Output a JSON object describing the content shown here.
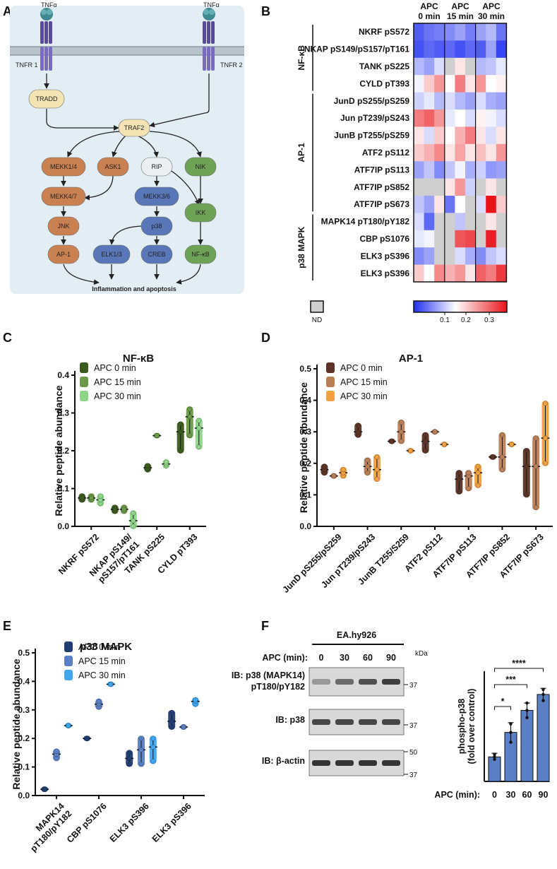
{
  "panels": {
    "A": {
      "letter": "A",
      "ligand_left": "TNFα",
      "ligand_right": "TNFα",
      "receptor_left": "TNFR 1",
      "receptor_right": "TNFR 2",
      "nodes": {
        "tradd": "TRADD",
        "traf2": "TRAF2",
        "mekk14": "MEKK1/4",
        "ask1": "ASK1",
        "rip": "RIP",
        "nik": "NIK",
        "mekk47": "MEKK4/7",
        "mekk36": "MEKK3/6",
        "ikk": "IKK",
        "jnk": "JNK",
        "p38": "p38",
        "ap1": "AP-1",
        "elk13": "ELK1/3",
        "creb": "CREB",
        "nfkb": "NF-κB"
      },
      "outcome": "Inflammation and apoptosis",
      "colors": {
        "mapk": "#c98152",
        "rip": "#eceff2",
        "nfkb": "#6ea357",
        "p38": "#5977b8",
        "adaptor": "#f4e3b3",
        "bg": "#e3eef4"
      }
    },
    "B": {
      "letter": "B",
      "col_headers": [
        [
          "APC",
          "0 min"
        ],
        [
          "APC",
          "15 min"
        ],
        [
          "APC",
          "30 min"
        ]
      ],
      "groups": [
        {
          "name": "NF-κB",
          "color": "#6ea357"
        },
        {
          "name": "AP-1",
          "color": "#c98152"
        },
        {
          "name": "p38 MAPK",
          "color": "#5977b8"
        }
      ],
      "rows": [
        {
          "label": "NKRF pS572",
          "values": [
            0.04,
            0.06,
            0.07,
            0.08,
            0.1,
            0.07,
            0.1,
            0.12,
            0.06
          ]
        },
        {
          "label": "NKAP pS149/pS157/pT161",
          "values": [
            0.03,
            0.05,
            0.04,
            0.05,
            0.03,
            0.05,
            0.04,
            0.1,
            0.02
          ]
        },
        {
          "label": "TANK pS225",
          "values": [
            0.12,
            0.1,
            0.15,
            null,
            0.2,
            null,
            0.12,
            0.13,
            0.16
          ]
        },
        {
          "label": "CYLD pT393",
          "values": [
            0.17,
            0.22,
            0.26,
            0.18,
            0.28,
            0.2,
            0.26,
            0.18,
            0.19
          ]
        },
        {
          "label": "JunD pS255/pS259",
          "values": [
            0.14,
            0.16,
            0.12,
            0.15,
            0.12,
            0.1,
            0.15,
            0.11,
            0.1
          ]
        },
        {
          "label": "Jun pT239/pS243",
          "values": [
            0.28,
            0.3,
            0.26,
            0.16,
            0.18,
            0.15,
            0.19,
            0.17,
            0.15
          ]
        },
        {
          "label": "JunB pT255/pS259",
          "values": [
            0.2,
            0.15,
            0.22,
            0.18,
            0.24,
            0.28,
            0.2,
            0.15,
            0.2
          ]
        },
        {
          "label": "ATF2 pS112",
          "values": [
            0.22,
            0.24,
            0.27,
            0.2,
            0.25,
            0.2,
            0.23,
            0.2,
            0.26
          ]
        },
        {
          "label": "ATF7IP pS113",
          "values": [
            0.1,
            0.13,
            0.08,
            0.13,
            0.17,
            0.11,
            0.14,
            0.09,
            0.1
          ]
        },
        {
          "label": "ATF7IP pS852",
          "values": [
            null,
            null,
            null,
            0.2,
            0.26,
            0.14,
            null,
            0.2,
            null
          ]
        },
        {
          "label": "ATF7IP pS673",
          "values": [
            0.13,
            0.1,
            0.2,
            0.06,
            0.18,
            null,
            0.15,
            0.36,
            0.22
          ]
        },
        {
          "label": "MAPK14 pT180/pY182",
          "values": [
            0.15,
            0.05,
            null,
            null,
            0.13,
            null,
            null,
            0.2,
            null
          ]
        },
        {
          "label": "CBP pS1076",
          "values": [
            0.16,
            0.17,
            null,
            null,
            0.31,
            0.32,
            null,
            0.35,
            null
          ]
        },
        {
          "label": "ELK3 pS396",
          "values": [
            0.08,
            0.1,
            null,
            null,
            0.15,
            0.11,
            0.08,
            0.13,
            0.15
          ]
        },
        {
          "label": "ELK3 pS396",
          "values": [
            0.22,
            0.18,
            0.27,
            0.24,
            0.26,
            0.2,
            0.3,
            0.28,
            0.33
          ]
        }
      ],
      "legend": {
        "nd": "ND",
        "ticks": [
          "0.1",
          "0.2",
          "0.3"
        ],
        "low": "#1f2ef0",
        "mid": "#ffffff",
        "high": "#e8141a",
        "nd_color": "#cfcfcf"
      }
    },
    "F": {
      "letter": "F",
      "cell_line": "EA.hy926",
      "apc_label": "APC (min):",
      "timepoints": [
        "0",
        "30",
        "60",
        "90"
      ],
      "kda": "kDa",
      "blots": [
        {
          "label_lines": [
            "IB: p38 (MAPK14)",
            "pT180/pY182"
          ],
          "markers": [
            "37"
          ]
        },
        {
          "label_lines": [
            "IB: p38"
          ],
          "markers": [
            "37"
          ]
        },
        {
          "label_lines": [
            "IB: β-actin"
          ],
          "markers": [
            "50",
            "37"
          ]
        }
      ]
    }
  },
  "chart_data": [
    {
      "id": "C",
      "letter": "C",
      "type": "scatter",
      "title": "NF-κB",
      "ylabel": "Relative peptide abundance",
      "ylim": [
        0,
        0.4
      ],
      "yticks": [
        "0.0",
        "0.1",
        "0.2",
        "0.3",
        "0.4"
      ],
      "categories": [
        "NKRF pS572",
        "NKAP pS149/pS157/pT161",
        "TANK pS225",
        "CYLD pT393"
      ],
      "category_lines": [
        [
          "NKRF pS572"
        ],
        [
          "NKAP pS149/",
          "pS157/pT161"
        ],
        [
          "TANK pS225"
        ],
        [
          "CYLD pT393"
        ]
      ],
      "series": [
        {
          "name": "APC 0 min",
          "color": "#3d5a1e",
          "points": [
            [
              0.07,
              0.08,
              0.075
            ],
            [
              0.04,
              0.05,
              0.045
            ],
            [
              0.15,
              0.155,
              0.16
            ],
            [
              0.2,
              0.25,
              0.27
            ]
          ]
        },
        {
          "name": "APC 15 min",
          "color": "#6c9a4a",
          "points": [
            [
              0.07,
              0.08,
              0.075
            ],
            [
              0.04,
              0.05,
              0.045
            ],
            [
              0.24,
              0.24,
              0.24
            ],
            [
              0.24,
              0.29,
              0.31
            ]
          ]
        },
        {
          "name": "APC 30 min",
          "color": "#8fd68a",
          "points": [
            [
              0.06,
              0.07,
              0.08
            ],
            [
              0.0,
              0.015,
              0.035
            ],
            [
              0.16,
              0.165,
              0.17
            ],
            [
              0.21,
              0.26,
              0.28
            ]
          ]
        }
      ]
    },
    {
      "id": "D",
      "letter": "D",
      "type": "scatter",
      "title": "AP-1",
      "ylabel": "Relative peptide abundance",
      "ylim": [
        0,
        0.5
      ],
      "yticks": [
        "0.0",
        "0.1",
        "0.2",
        "0.3",
        "0.4",
        "0.5"
      ],
      "categories": [
        "JunD pS255/pS259",
        "Jun pT239/pS243",
        "JunB T255/S259",
        "ATF2 pS112",
        "ATF7IP pS113",
        "ATF7IP pS852",
        "ATF7IP pS673"
      ],
      "category_lines": [
        [
          "JunD pS255/pS259"
        ],
        [
          "Jun pT239/pS243"
        ],
        [
          "JunB T255/S259"
        ],
        [
          "ATF2 pS112"
        ],
        [
          "ATF7IP pS113"
        ],
        [
          "ATF7IP pS852"
        ],
        [
          "ATF7IP pS673"
        ]
      ],
      "series": [
        {
          "name": "APC 0 min",
          "color": "#5b3225",
          "points": [
            [
              0.17,
              0.18,
              0.19
            ],
            [
              0.29,
              0.3,
              0.32
            ],
            [
              0.27,
              0.27,
              0.27
            ],
            [
              0.24,
              0.27,
              0.29
            ],
            [
              0.11,
              0.15,
              0.17
            ],
            [
              0.22,
              0.22,
              0.22
            ],
            [
              0.1,
              0.19,
              0.24
            ]
          ]
        },
        {
          "name": "APC 15 min",
          "color": "#b98058",
          "points": [
            [
              0.16,
              0.16,
              0.16
            ],
            [
              0.17,
              0.19,
              0.21
            ],
            [
              0.27,
              0.3,
              0.33
            ],
            [
              0.3,
              0.3,
              0.3
            ],
            [
              0.12,
              0.16,
              0.17
            ],
            [
              0.18,
              0.22,
              0.29
            ],
            [
              0.06,
              0.19,
              0.28
            ]
          ]
        },
        {
          "name": "APC 30 min",
          "color": "#f0a040",
          "points": [
            [
              0.16,
              0.17,
              0.18
            ],
            [
              0.15,
              0.18,
              0.22
            ],
            [
              0.24,
              0.24,
              0.24
            ],
            [
              0.26,
              0.26,
              0.26
            ],
            [
              0.13,
              0.17,
              0.19
            ],
            [
              0.26,
              0.26,
              0.26
            ],
            [
              0.2,
              0.28,
              0.39
            ]
          ]
        }
      ]
    },
    {
      "id": "E",
      "letter": "E",
      "type": "scatter",
      "title": "p38 MAPK",
      "ylabel": "Relative peptide abundance",
      "ylim": [
        0,
        0.5
      ],
      "yticks": [
        "0.0",
        "0.1",
        "0.2",
        "0.3",
        "0.4",
        "0.5"
      ],
      "categories": [
        "MAPK14 pT180/pY182",
        "CBP pS1076",
        "ELK3 pS396",
        "ELK3 pS396"
      ],
      "category_lines": [
        [
          "MAPK14",
          "pT180/pY182"
        ],
        [
          "CBP pS1076"
        ],
        [
          "ELK3 pS396"
        ],
        [
          "ELK3 pS396"
        ]
      ],
      "series": [
        {
          "name": "APC 0 min",
          "color": "#1f3c73",
          "points": [
            [
              0.022,
              0.022,
              0.022
            ],
            [
              0.2,
              0.2,
              0.2
            ],
            [
              0.11,
              0.13,
              0.15
            ],
            [
              0.24,
              0.26,
              0.29
            ]
          ]
        },
        {
          "name": "APC 15 min",
          "color": "#5a7fc4",
          "points": [
            [
              0.13,
              0.145,
              0.155
            ],
            [
              0.31,
              0.32,
              0.33
            ],
            [
              0.11,
              0.16,
              0.2
            ],
            [
              0.24,
              0.24,
              0.24
            ]
          ]
        },
        {
          "name": "APC 30 min",
          "color": "#3fa6f2",
          "points": [
            [
              0.245,
              0.245,
              0.245
            ],
            [
              0.39,
              0.39,
              0.39
            ],
            [
              0.12,
              0.17,
              0.2
            ],
            [
              0.32,
              0.33,
              0.335
            ]
          ]
        }
      ]
    },
    {
      "id": "F-bar",
      "type": "bar",
      "ylabel_lines": [
        "phospho-p38",
        "(fold over control)"
      ],
      "xlabel": "APC (min):",
      "categories": [
        "0",
        "30",
        "60",
        "90"
      ],
      "values": [
        1.0,
        2.0,
        2.9,
        3.55
      ],
      "errors": [
        0.15,
        0.4,
        0.3,
        0.25
      ],
      "points": [
        [
          0.9,
          1.0,
          1.1
        ],
        [
          1.6,
          2.0,
          2.35
        ],
        [
          2.6,
          2.9,
          3.2
        ],
        [
          3.3,
          3.55,
          3.75
        ]
      ],
      "ylim": [
        0,
        4.5
      ],
      "color": "#5a7fc4",
      "significance": [
        {
          "from": "0",
          "to": "30",
          "label": "*"
        },
        {
          "from": "0",
          "to": "60",
          "label": "***"
        },
        {
          "from": "0",
          "to": "90",
          "label": "****"
        }
      ]
    }
  ]
}
